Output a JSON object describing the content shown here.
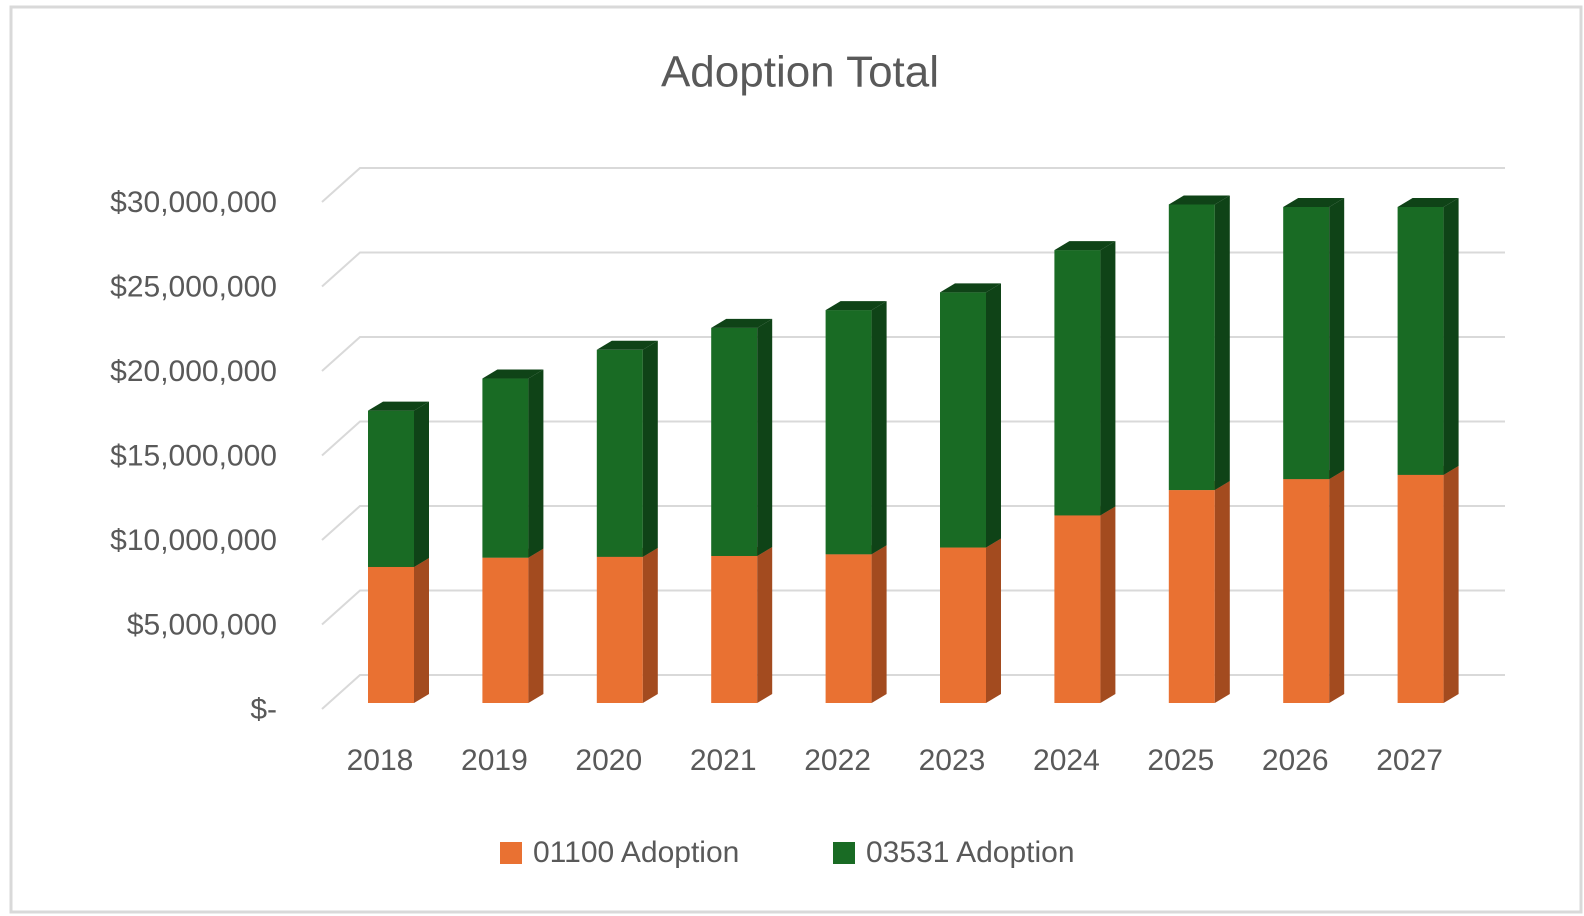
{
  "chart_data": {
    "type": "bar3d_stacked",
    "title": "Adoption Total",
    "categories": [
      "2018",
      "2019",
      "2020",
      "2021",
      "2022",
      "2023",
      "2024",
      "2025",
      "2026",
      "2027"
    ],
    "series": [
      {
        "name": "01100 Adoption",
        "color": "#e97132",
        "side_color": "#a34b1f",
        "values": [
          8050000,
          8600000,
          8650000,
          8700000,
          8800000,
          9200000,
          11100000,
          12600000,
          13250000,
          13500000
        ]
      },
      {
        "name": "03531 Adoption",
        "color": "#196b24",
        "side_color": "#0f4317",
        "values": [
          9250000,
          10600000,
          12250000,
          13500000,
          14450000,
          15100000,
          15700000,
          16900000,
          16100000,
          15850000
        ]
      }
    ],
    "ylim": [
      0,
      30000000
    ],
    "yticks": [
      {
        "value": 0,
        "label": "$-"
      },
      {
        "value": 5000000,
        "label": "$5,000,000"
      },
      {
        "value": 10000000,
        "label": "$10,000,000"
      },
      {
        "value": 15000000,
        "label": "$15,000,000"
      },
      {
        "value": 20000000,
        "label": "$20,000,000"
      },
      {
        "value": 25000000,
        "label": "$25,000,000"
      },
      {
        "value": 30000000,
        "label": "$30,000,000"
      }
    ],
    "grid": true,
    "legend": "bottom"
  }
}
